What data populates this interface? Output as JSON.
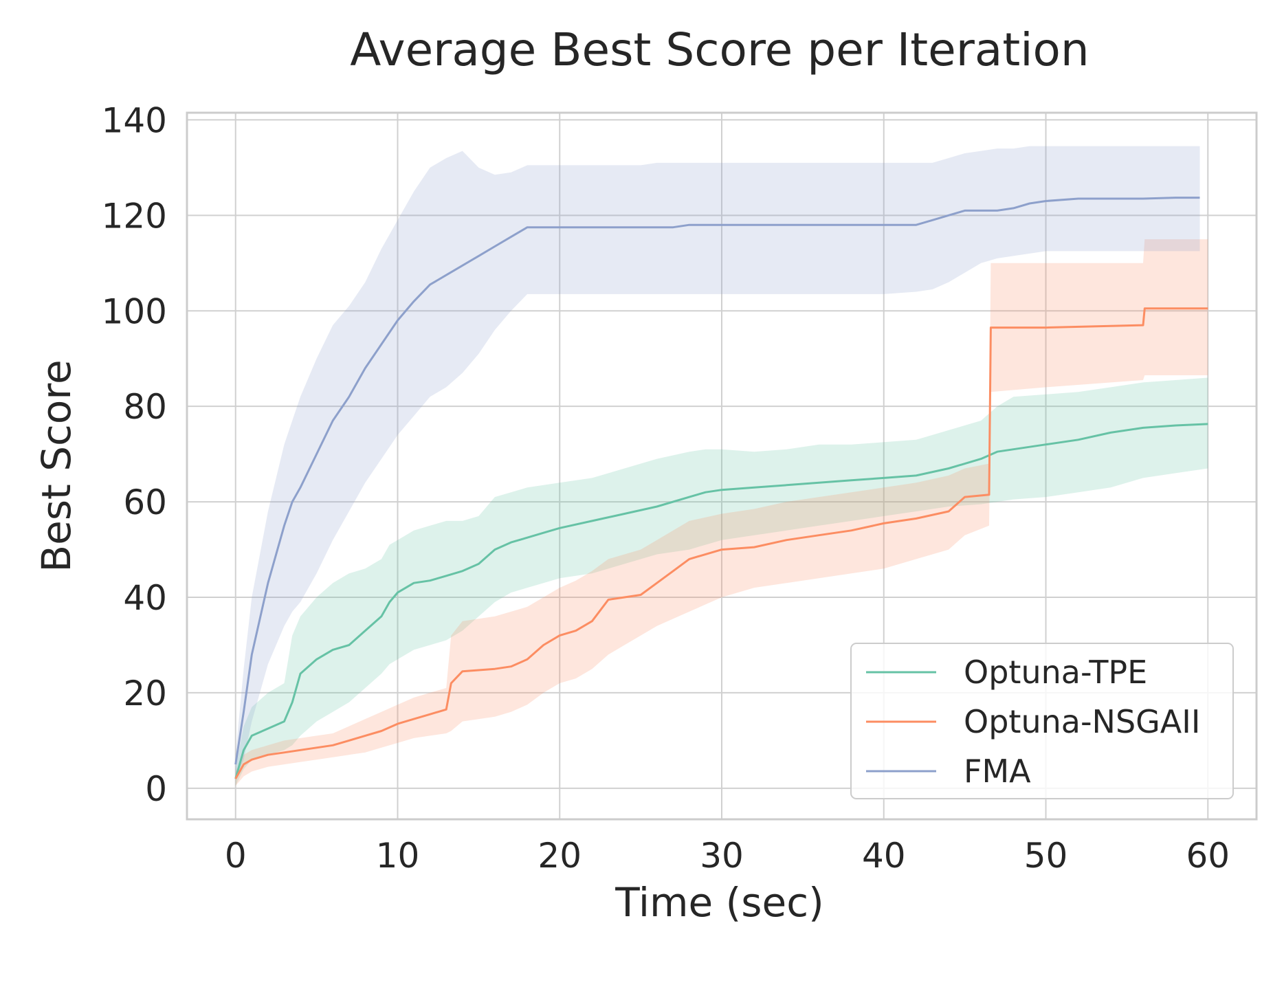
{
  "chart_data": {
    "type": "line",
    "title": "Average Best Score per Iteration",
    "xlabel": "Time (sec)",
    "ylabel": "Best Score",
    "xlim": [
      -3,
      63
    ],
    "ylim": [
      -6.5,
      141.5
    ],
    "xticks": [
      0,
      10,
      20,
      30,
      40,
      50,
      60
    ],
    "yticks": [
      0,
      20,
      40,
      60,
      80,
      100,
      120,
      140
    ],
    "grid": true,
    "legend": {
      "position": "lower-right",
      "entries": [
        "Optuna-TPE",
        "Optuna-NSGAII",
        "FMA"
      ]
    },
    "series": [
      {
        "name": "Optuna-TPE",
        "color": "#66c2a5",
        "x": [
          0,
          0.5,
          1,
          2,
          3,
          3.5,
          4,
          5,
          6,
          7,
          8,
          9,
          9.5,
          10,
          11,
          12,
          13,
          14,
          15,
          16,
          17,
          18,
          19,
          20,
          22,
          24,
          26,
          28,
          29,
          30,
          32,
          34,
          36,
          38,
          40,
          42,
          44,
          46,
          47,
          48,
          50,
          52,
          54,
          56,
          58,
          60
        ],
        "y": [
          2,
          8,
          11,
          12.5,
          14,
          18,
          24,
          27,
          29,
          30,
          33,
          36,
          39,
          41,
          43,
          43.5,
          44.5,
          45.5,
          47,
          50,
          51.5,
          52.5,
          53.5,
          54.5,
          56,
          57.5,
          59,
          61,
          62,
          62.5,
          63,
          63.5,
          64,
          64.5,
          65,
          65.5,
          67,
          69,
          70.5,
          71,
          72,
          73,
          74.5,
          75.5,
          76,
          76.3
        ],
        "lower": [
          0.5,
          4,
          6,
          7,
          8,
          9,
          11,
          14,
          16,
          18,
          21,
          24,
          26,
          27,
          29,
          30,
          31,
          33,
          36,
          39,
          41,
          42,
          43,
          44,
          45,
          47,
          49,
          50,
          51,
          52,
          53,
          54,
          55,
          56,
          57,
          58,
          59,
          59.5,
          60,
          60.5,
          61,
          62,
          63,
          65,
          66,
          67
        ],
        "upper": [
          4,
          13,
          17,
          20,
          22,
          32,
          36,
          40,
          43,
          45,
          46,
          48,
          51,
          52,
          54,
          55,
          56,
          56,
          57,
          61,
          62,
          63,
          63.5,
          64,
          65,
          67,
          69,
          70.5,
          71,
          71,
          70.5,
          71,
          72,
          72,
          72.5,
          73,
          75,
          77,
          80,
          82,
          82.5,
          83,
          84,
          85,
          85.5,
          86
        ]
      },
      {
        "name": "Optuna-NSGAII",
        "color": "#fc8d62",
        "x": [
          0,
          0.5,
          1,
          2,
          3,
          4,
          5,
          6,
          7,
          8,
          9,
          10,
          11,
          12,
          13,
          13.3,
          14,
          16,
          17,
          18,
          19,
          20,
          21,
          22,
          23,
          24,
          25,
          26,
          27,
          28,
          30,
          32,
          34,
          36,
          38,
          40,
          42,
          44,
          45,
          46.5,
          46.6,
          50,
          56,
          56.1,
          60
        ],
        "y": [
          2,
          5,
          6,
          7,
          7.5,
          8,
          8.5,
          9,
          10,
          11,
          12,
          13.5,
          14.5,
          15.5,
          16.5,
          22,
          24.5,
          25,
          25.5,
          27,
          30,
          32,
          33,
          35,
          39.5,
          40,
          40.5,
          43,
          45.5,
          48,
          50,
          50.5,
          52,
          53,
          54,
          55.5,
          56.5,
          58,
          61,
          61.5,
          96.5,
          96.5,
          97,
          100.5,
          100.5
        ],
        "lower": [
          0.5,
          2.5,
          3.5,
          4.5,
          5,
          5.5,
          6,
          6.5,
          7,
          7.5,
          8.5,
          9.5,
          10.5,
          11,
          11.5,
          12,
          14,
          15,
          16,
          17.5,
          20,
          22,
          23,
          25,
          28,
          30,
          32,
          34,
          35.5,
          37,
          40,
          42,
          43,
          44,
          45,
          46,
          48,
          50,
          53,
          55,
          83,
          84,
          85.5,
          86.5,
          86.5
        ],
        "upper": [
          3.5,
          7,
          8,
          9,
          10,
          10.5,
          11,
          11.5,
          13,
          14.5,
          16,
          17.5,
          19,
          20,
          21,
          32,
          35,
          36,
          37,
          38,
          40,
          42,
          43.5,
          45.5,
          48,
          49,
          50,
          52,
          54,
          56,
          57.5,
          58.5,
          60,
          61,
          62,
          63,
          64,
          65.5,
          67,
          68,
          110,
          110,
          110,
          115,
          115
        ]
      },
      {
        "name": "FMA",
        "color": "#8da0cb",
        "x": [
          0,
          0.5,
          1,
          2,
          3,
          3.5,
          4,
          5,
          6,
          7,
          8,
          9,
          10,
          11,
          12,
          13,
          14,
          15,
          16,
          17,
          18,
          20,
          25,
          26,
          27,
          28,
          30,
          35,
          40,
          42,
          43,
          44,
          45,
          46,
          47,
          48,
          49,
          50,
          52,
          54,
          56,
          58,
          59.5
        ],
        "y": [
          5,
          16,
          28,
          43,
          55,
          60,
          63,
          70,
          77,
          82,
          88,
          93,
          98,
          102,
          105.5,
          107.5,
          109.5,
          111.5,
          113.5,
          115.5,
          117.5,
          117.5,
          117.5,
          117.5,
          117.5,
          118,
          118,
          118,
          118,
          118,
          119,
          120,
          121,
          121,
          121,
          121.5,
          122.5,
          123,
          123.5,
          123.5,
          123.5,
          123.7,
          123.7
        ],
        "lower": [
          2,
          6,
          14,
          26,
          34,
          37,
          39,
          45,
          52,
          58,
          64,
          69,
          74,
          78,
          82,
          84,
          87,
          91,
          96,
          100,
          103.5,
          103.5,
          103.5,
          103.5,
          103.5,
          103.5,
          103.5,
          103.5,
          103.5,
          104,
          104.5,
          106,
          108,
          110,
          111,
          111.5,
          112,
          112.5,
          112.5,
          112.5,
          112.5,
          112.5,
          112.5
        ],
        "upper": [
          7,
          25,
          40,
          58,
          72,
          77,
          82,
          90,
          97,
          101,
          106,
          113,
          119,
          125,
          130,
          132,
          133.5,
          130,
          128.5,
          129,
          130.5,
          130.5,
          130.5,
          131,
          131,
          131,
          131,
          131,
          131,
          131,
          131,
          132,
          133,
          133.5,
          134,
          134,
          134.5,
          134.5,
          134.5,
          134.5,
          134.5,
          134.5,
          134.5
        ]
      }
    ]
  }
}
